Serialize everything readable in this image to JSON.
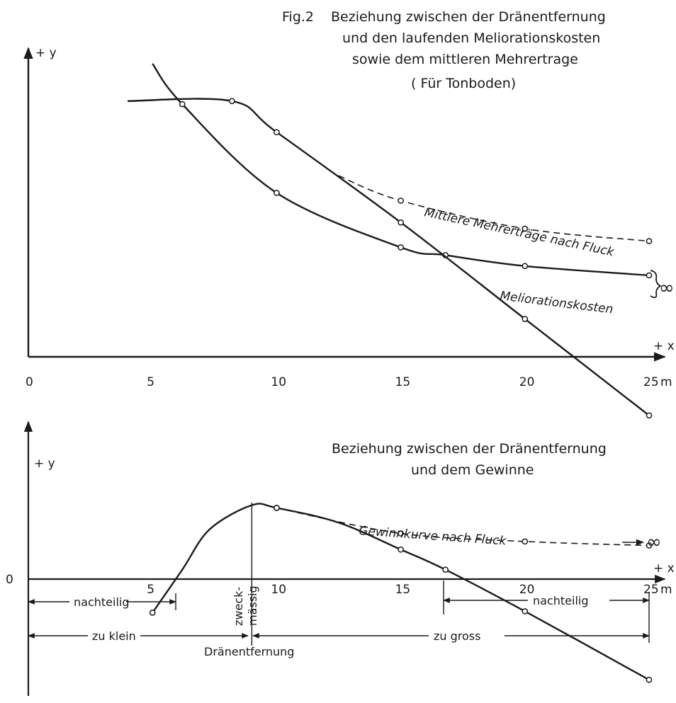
{
  "figure": {
    "fig_label": "Fig.2",
    "title_line1": "Beziehung zwischen der Dränentfernung",
    "title_line2": "und den laufenden Meliorationskosten",
    "title_line3": "sowie dem mittleren Mehrertrage",
    "title_line4": "( Für Tonboden)",
    "infinity": "∞"
  },
  "chart_data": [
    {
      "type": "line",
      "title": "Beziehung zwischen der Dränentfernung und den laufenden Meliorationskosten sowie dem mittleren Mehrertrage (Für Tonboden)",
      "x_axis_label": "+ x",
      "y_axis_label": "+ y",
      "x_unit": "m",
      "origin_label": "0",
      "x_ticks": [
        5,
        10,
        15,
        20,
        25
      ],
      "xlim": [
        0,
        26
      ],
      "ylim": [
        -2.4,
        9.7
      ],
      "grid": false,
      "series": [
        {
          "name": "Mittlere Mehrerträge nach Fluck",
          "style": "dashed",
          "points": [
            [
              12.5,
              5.6
            ],
            [
              15,
              4.8
            ],
            [
              20,
              3.9
            ],
            [
              25,
              3.5
            ]
          ]
        },
        {
          "name": "Meliorationskosten",
          "style": "solid",
          "points": [
            [
              5,
              9.2
            ],
            [
              6.2,
              7.9
            ],
            [
              10,
              5.05
            ],
            [
              15,
              3.3
            ],
            [
              16.8,
              3.05
            ],
            [
              20,
              2.7
            ],
            [
              25,
              2.4
            ]
          ]
        },
        {
          "name": "",
          "style": "solid",
          "points": [
            [
              4,
              8.0
            ],
            [
              8.2,
              8.0
            ],
            [
              10,
              7.0
            ],
            [
              15,
              4.1
            ],
            [
              20,
              1.0
            ],
            [
              25,
              -2.1
            ]
          ]
        }
      ]
    },
    {
      "type": "line",
      "title": "Beziehung zwischen der Dränentfernung und dem Gewinne",
      "x_axis_label": "+ x",
      "y_axis_label": "+ y",
      "x_unit": "m",
      "origin_label": "0",
      "x_ticks": [
        5,
        10,
        15,
        20,
        25
      ],
      "xlim": [
        0,
        26
      ],
      "ylim": [
        -4.7,
        5.5
      ],
      "grid": false,
      "series": [
        {
          "name": "Gewinnkurve nach Fluck",
          "style": "dashed",
          "points": [
            [
              10,
              2.3
            ],
            [
              15,
              1.35
            ],
            [
              20,
              1.05
            ],
            [
              25,
              0.9
            ]
          ]
        },
        {
          "name": "",
          "style": "solid",
          "points": [
            [
              5,
              -1.6
            ],
            [
              6.2,
              0.0
            ],
            [
              7.3,
              1.5
            ],
            [
              9.0,
              2.4
            ],
            [
              10,
              2.3
            ],
            [
              12.5,
              1.75
            ],
            [
              15,
              0.75
            ],
            [
              16.8,
              0.0
            ],
            [
              20,
              -1.55
            ],
            [
              25,
              -4.1
            ]
          ]
        }
      ],
      "annotations": {
        "optimum_label_line1": "zweck-",
        "optimum_label_line2": "mässig",
        "optimum_x": 9,
        "left_upper": "nachteilig",
        "left_lower": "zu klein",
        "right_upper": "nachteilig",
        "right_lower": "zu gross",
        "bottom_label": "Dränentfernung",
        "infinity_arrow": "∞"
      }
    }
  ]
}
